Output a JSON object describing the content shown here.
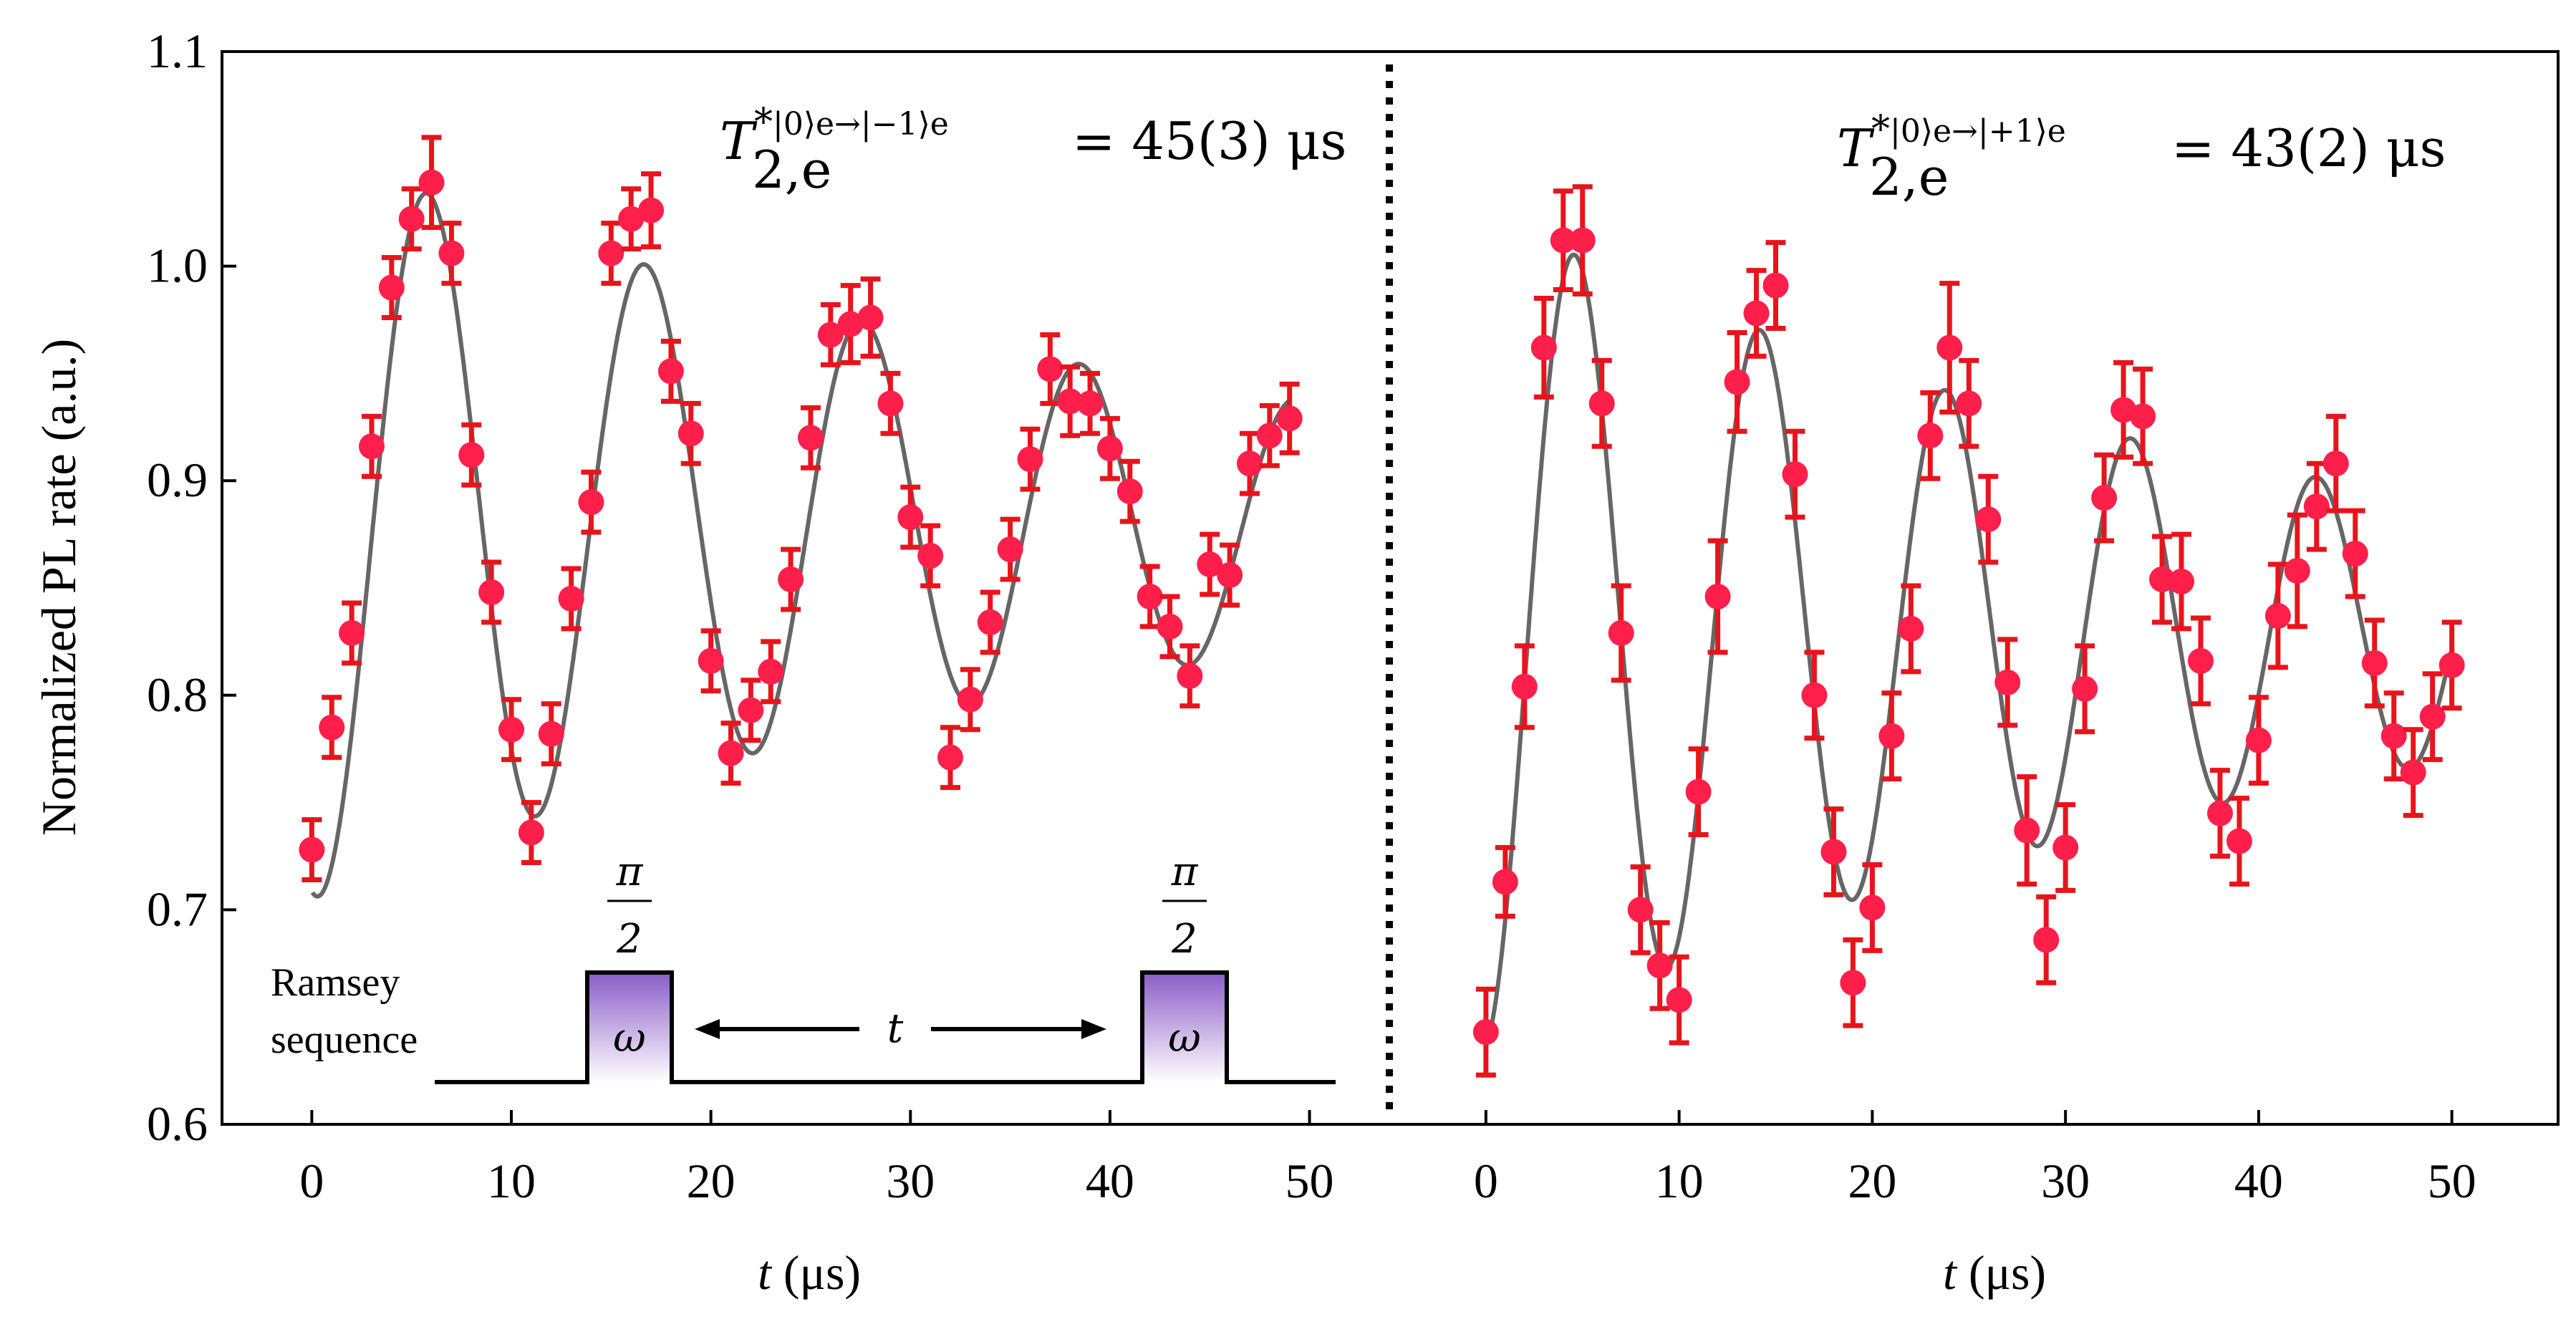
{
  "chart_data": [
    {
      "type": "scatter",
      "panel": "left",
      "annotation": {
        "symbol": "T",
        "star": "*",
        "superscript": "|0⟩e→|−1⟩e",
        "subscript": "2,e",
        "value_text": "= 45(3) μs"
      },
      "xlabel_symbol": "t",
      "xlabel_unit": "(μs)",
      "xlim": [
        -4.5,
        54
      ],
      "xticks": [
        0,
        10,
        20,
        30,
        40,
        50
      ],
      "xtick_labels": [
        "0",
        "10",
        "20",
        "30",
        "40",
        "50"
      ],
      "points": {
        "x": [
          0,
          1,
          2,
          3,
          4,
          5,
          6,
          7,
          8,
          9,
          10,
          11,
          12,
          13,
          14,
          15,
          16,
          17,
          18,
          19,
          20,
          21,
          22,
          23,
          24,
          25,
          26,
          27,
          28,
          29,
          30,
          31,
          32,
          33,
          34,
          35,
          36,
          37,
          38,
          39,
          40,
          41,
          42,
          43,
          44,
          45,
          46,
          47,
          48,
          49
        ],
        "y": [
          0.728,
          0.785,
          0.829,
          0.916,
          0.99,
          1.022,
          1.039,
          1.006,
          0.912,
          0.848,
          0.784,
          0.736,
          0.782,
          0.845,
          0.89,
          1.006,
          1.022,
          1.026,
          0.951,
          0.922,
          0.816,
          0.773,
          0.793,
          0.811,
          0.854,
          0.92,
          0.968,
          0.973,
          0.976,
          0.936,
          0.883,
          0.865,
          0.771,
          0.798,
          0.834,
          0.868,
          0.91,
          0.952,
          0.937,
          0.936,
          0.915,
          0.895,
          0.846,
          0.832,
          0.809,
          0.861,
          0.856,
          0.908,
          0.921,
          0.929
        ],
        "err": [
          0.014,
          0.014,
          0.014,
          0.014,
          0.014,
          0.014,
          0.021,
          0.014,
          0.014,
          0.014,
          0.014,
          0.014,
          0.014,
          0.014,
          0.014,
          0.014,
          0.014,
          0.017,
          0.014,
          0.014,
          0.014,
          0.014,
          0.014,
          0.014,
          0.014,
          0.014,
          0.014,
          0.018,
          0.018,
          0.014,
          0.014,
          0.014,
          0.014,
          0.014,
          0.014,
          0.014,
          0.014,
          0.016,
          0.016,
          0.014,
          0.014,
          0.014,
          0.014,
          0.014,
          0.014,
          0.014,
          0.014,
          0.014,
          0.014,
          0.016
        ]
      },
      "fit": {
        "offset": 0.88,
        "amplitude": 0.175,
        "tau_us": 45,
        "period_us": 10.9,
        "phase_us": 5.8
      }
    },
    {
      "type": "scatter",
      "panel": "right",
      "annotation": {
        "symbol": "T",
        "star": "*",
        "superscript": "|0⟩e→|+1⟩e",
        "subscript": "2,e",
        "value_text": "= 43(2) μs"
      },
      "xlabel_symbol": "t",
      "xlabel_unit": "(μs)",
      "xlim": [
        -5,
        55.5
      ],
      "xticks": [
        0,
        10,
        20,
        30,
        40,
        50
      ],
      "xtick_labels": [
        "0",
        "10",
        "20",
        "30",
        "40",
        "50"
      ],
      "points": {
        "x": [
          0,
          1,
          2,
          3,
          4,
          5,
          6,
          7,
          8,
          9,
          10,
          11,
          12,
          13,
          14,
          15,
          16,
          17,
          18,
          19,
          20,
          21,
          22,
          23,
          24,
          25,
          26,
          27,
          28,
          29,
          30,
          31,
          32,
          33,
          34,
          35,
          36,
          37,
          38,
          39,
          40,
          41,
          42,
          43,
          44,
          45,
          46,
          47,
          48,
          49,
          50
        ],
        "y": [
          0.643,
          0.713,
          0.804,
          0.962,
          1.012,
          1.012,
          0.936,
          0.829,
          0.7,
          0.674,
          0.658,
          0.755,
          0.846,
          0.946,
          0.978,
          0.991,
          0.903,
          0.8,
          0.727,
          0.666,
          0.701,
          0.781,
          0.831,
          0.921,
          0.962,
          0.936,
          0.882,
          0.806,
          0.737,
          0.686,
          0.729,
          0.803,
          0.892,
          0.933,
          0.93,
          0.854,
          0.853,
          0.816,
          0.745,
          0.732,
          0.779,
          0.837,
          0.858,
          0.888,
          0.908,
          0.866,
          0.815,
          0.781,
          0.764,
          0.79,
          0.814
        ],
        "err": [
          0.02,
          0.016,
          0.019,
          0.023,
          0.023,
          0.025,
          0.02,
          0.022,
          0.02,
          0.02,
          0.02,
          0.02,
          0.026,
          0.023,
          0.02,
          0.02,
          0.02,
          0.02,
          0.02,
          0.02,
          0.02,
          0.02,
          0.02,
          0.02,
          0.03,
          0.02,
          0.02,
          0.02,
          0.025,
          0.02,
          0.02,
          0.02,
          0.02,
          0.022,
          0.022,
          0.02,
          0.022,
          0.02,
          0.02,
          0.02,
          0.02,
          0.024,
          0.026,
          0.02,
          0.022,
          0.02,
          0.02,
          0.02,
          0.02,
          0.02,
          0.02
        ]
      },
      "fit": {
        "offset": 0.83,
        "amplitude": 0.195,
        "tau_us": 43,
        "period_us": 9.6,
        "phase_us": 4.6
      }
    }
  ],
  "yaxis": {
    "label": "Normalized PL rate (a.u.)",
    "ylim": [
      0.6,
      1.1
    ],
    "ticks": [
      0.6,
      0.7,
      0.8,
      0.9,
      1.0,
      1.1
    ],
    "tick_labels": [
      "0.6",
      "0.7",
      "0.8",
      "0.9",
      "1.0",
      "1.1"
    ]
  },
  "inset": {
    "label_line1": "Ramsey",
    "label_line2": "sequence",
    "pulse_numerator": "π",
    "pulse_denominator": "2",
    "pulse_symbol": "ω",
    "delay_symbol": "t"
  },
  "colors": {
    "points": "#ff1f4a",
    "errorbars": "#e8141c",
    "fit": "#666666",
    "pulse_top": "#8a5cc8",
    "pulse_bottom": "#ffffff"
  }
}
